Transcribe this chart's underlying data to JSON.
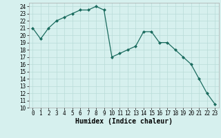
{
  "x": [
    0,
    1,
    2,
    3,
    4,
    5,
    6,
    7,
    8,
    9,
    10,
    11,
    12,
    13,
    14,
    15,
    16,
    17,
    18,
    19,
    20,
    21,
    22,
    23
  ],
  "y": [
    21,
    19.5,
    21,
    22,
    22.5,
    23,
    23.5,
    23.5,
    24,
    23.5,
    17,
    17.5,
    18,
    18.5,
    20.5,
    20.5,
    19,
    19,
    18,
    17,
    16,
    14,
    12,
    10.5
  ],
  "line_color": "#1a6b5e",
  "marker": "D",
  "marker_size": 2,
  "background_color": "#d6f0ee",
  "grid_color": "#b8dbd8",
  "xlabel": "Humidex (Indice chaleur)",
  "xlim": [
    -0.5,
    23.5
  ],
  "ylim": [
    10,
    24.5
  ],
  "yticks": [
    10,
    11,
    12,
    13,
    14,
    15,
    16,
    17,
    18,
    19,
    20,
    21,
    22,
    23,
    24
  ],
  "xticks": [
    0,
    1,
    2,
    3,
    4,
    5,
    6,
    7,
    8,
    9,
    10,
    11,
    12,
    13,
    14,
    15,
    16,
    17,
    18,
    19,
    20,
    21,
    22,
    23
  ],
  "tick_fontsize": 5.5,
  "label_fontsize": 7.0
}
